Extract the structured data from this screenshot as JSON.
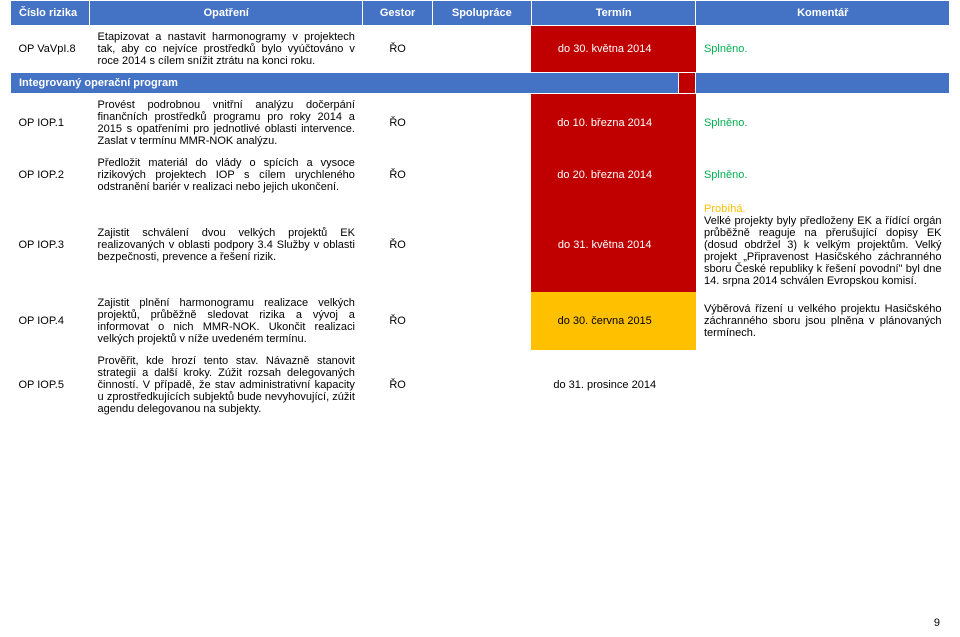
{
  "header": {
    "risk": "Číslo rizika",
    "action": "Opatření",
    "gestor": "Gestor",
    "coop": "Spolupráce",
    "term": "Termín",
    "comment": "Komentář"
  },
  "section_title": "Integrovaný operační program",
  "rows": [
    {
      "risk": "OP VaVpI.8",
      "action": "Etapizovat a nastavit harmonogramy v projektech tak, aby co nejvíce prostředků bylo vyúčtováno v roce 2014 s cílem snížit ztrátu na konci roku.",
      "gestor": "ŘO",
      "coop": "",
      "term": "do 30. května 2014",
      "term_class": "term-red",
      "pad_class": "pad-cell-red",
      "comment": "Splněno.",
      "comment_class": "status-done"
    },
    {
      "risk": "OP IOP.1",
      "action": "Provést podrobnou vnitřní analýzu dočerpání finančních prostředků programu pro roky 2014 a 2015 s opatřeními pro jednotlivé oblasti intervence. Zaslat v termínu MMR-NOK analýzu.",
      "gestor": "ŘO",
      "coop": "",
      "term": "do 10. března 2014",
      "term_class": "term-red",
      "pad_class": "pad-cell-red",
      "comment": "Splněno.",
      "comment_class": "status-done"
    },
    {
      "risk": "OP IOP.2",
      "action": "Předložit materiál do vlády o spících a vysoce rizikových projektech IOP s cílem urychleného odstranění bariér v realizaci nebo jejich ukončení.",
      "gestor": "ŘO",
      "coop": "",
      "term": "do 20. března 2014",
      "term_class": "term-red",
      "pad_class": "pad-cell-red",
      "comment": "Splněno.",
      "comment_class": "status-done"
    },
    {
      "risk": "OP IOP.3",
      "action": "Zajistit schválení dvou velkých projektů EK realizovaných v oblasti podpory 3.4 Služby v oblasti bezpečnosti, prevence a řešení rizik.",
      "gestor": "ŘO",
      "coop": "",
      "term": "do 31. května 2014",
      "term_class": "term-red",
      "pad_class": "pad-cell-red",
      "comment_prog": "Probíhá.",
      "comment_body": "Velké projekty byly předloženy EK a řídící orgán průběžně reaguje na přerušující dopisy EK (dosud obdržel 3) k velkým projektům. Velký projekt „Připravenost Hasičského záchranného sboru České republiky k řešení povodní\" byl dne 14. srpna 2014 schválen Evropskou komisí."
    },
    {
      "risk": "OP IOP.4",
      "action": "Zajistit plnění harmonogramu realizace velkých projektů, průběžně sledovat rizika a vývoj a informovat o nich MMR-NOK. Ukončit realizaci velkých projektů v níže uvedeném termínu.",
      "gestor": "ŘO",
      "coop": "",
      "term": "do 30. června 2015",
      "term_class": "term-yellow",
      "pad_class": "pad-cell-yellow",
      "comment_body": "Výběrová řízení u velkého projektu Hasičského záchranného sboru jsou plněna v plánovaných termínech."
    },
    {
      "risk": "OP IOP.5",
      "action": "Prověřit, kde hrozí tento stav. Návazně stanovit strategii a další kroky. Zúžit rozsah delegovaných činností. V případě, že stav administrativní kapacity u zprostředkujících subjektů bude nevyhovující, zúžit agendu delegovanou na subjekty.",
      "gestor": "ŘO",
      "coop": "",
      "term": "do 31. prosince 2014",
      "term_class": "",
      "pad_class": "",
      "comment": ""
    }
  ],
  "page_number": "9"
}
